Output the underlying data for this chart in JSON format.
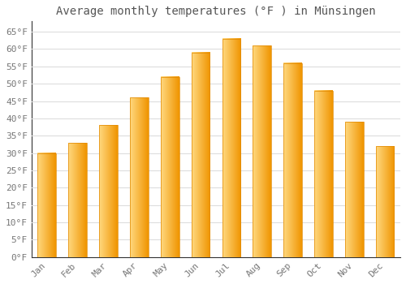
{
  "months": [
    "Jan",
    "Feb",
    "Mar",
    "Apr",
    "May",
    "Jun",
    "Jul",
    "Aug",
    "Sep",
    "Oct",
    "Nov",
    "Dec"
  ],
  "values": [
    30,
    33,
    38,
    46,
    52,
    59,
    63,
    61,
    56,
    48,
    39,
    32
  ],
  "bar_color_face": "#FFA500",
  "bar_color_left": "#FFD080",
  "bar_color_right": "#F09000",
  "title": "Average monthly temperatures (°F ) in Münsingen",
  "ylim": [
    0,
    68
  ],
  "yticks": [
    0,
    5,
    10,
    15,
    20,
    25,
    30,
    35,
    40,
    45,
    50,
    55,
    60,
    65
  ],
  "ytick_labels": [
    "0°F",
    "5°F",
    "10°F",
    "15°F",
    "20°F",
    "25°F",
    "30°F",
    "35°F",
    "40°F",
    "45°F",
    "50°F",
    "55°F",
    "60°F",
    "65°F"
  ],
  "background_color": "#FFFFFF",
  "grid_color": "#DDDDDD",
  "title_fontsize": 10,
  "tick_fontsize": 8,
  "font_family": "monospace",
  "tick_color": "#777777",
  "bar_width": 0.6
}
